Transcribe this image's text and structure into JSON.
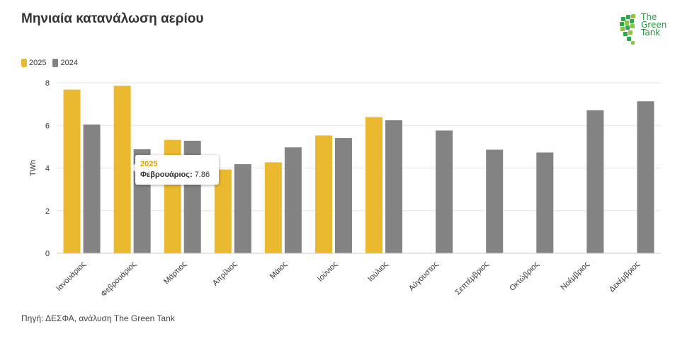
{
  "title": "Μηνιαία κατανάλωση αερίου",
  "logo": {
    "lines": [
      "The",
      "Green",
      "Tank"
    ]
  },
  "legend": [
    {
      "label": "2025",
      "color": "#ebb92f"
    },
    {
      "label": "2024",
      "color": "#838383"
    }
  ],
  "tooltip": {
    "series": "2025",
    "category": "Φεβρουάριος:",
    "value": "7.86"
  },
  "source": "Πηγή: ΔΕΣΦΑ, ανάλυση The Green Tank",
  "chart_data": {
    "type": "bar",
    "title": "Μηνιαία κατανάλωση αερίου",
    "ylabel": "TWh",
    "xlabel": "",
    "ylim": [
      0,
      8
    ],
    "yticks": [
      0,
      2,
      4,
      6,
      8
    ],
    "grid": true,
    "legend_position": "top-left",
    "categories": [
      "Ιανουάριος",
      "Φεβρουάριος",
      "Μάρτιος",
      "Απρίλιος",
      "Μάιος",
      "Ιούνιος",
      "Ιούλιος",
      "Αύγουστος",
      "Σεπτέμβριος",
      "Οκτώβριος",
      "Νοέμβριος",
      "Δεκέμβριος"
    ],
    "series": [
      {
        "name": "2025",
        "color": "#ebb92f",
        "values": [
          7.68,
          7.86,
          5.32,
          3.93,
          4.27,
          5.53,
          6.39,
          null,
          null,
          null,
          null,
          null
        ]
      },
      {
        "name": "2024",
        "color": "#838383",
        "values": [
          6.04,
          4.88,
          5.28,
          4.18,
          4.97,
          5.41,
          6.24,
          5.76,
          4.86,
          4.73,
          6.71,
          7.13
        ]
      }
    ]
  }
}
